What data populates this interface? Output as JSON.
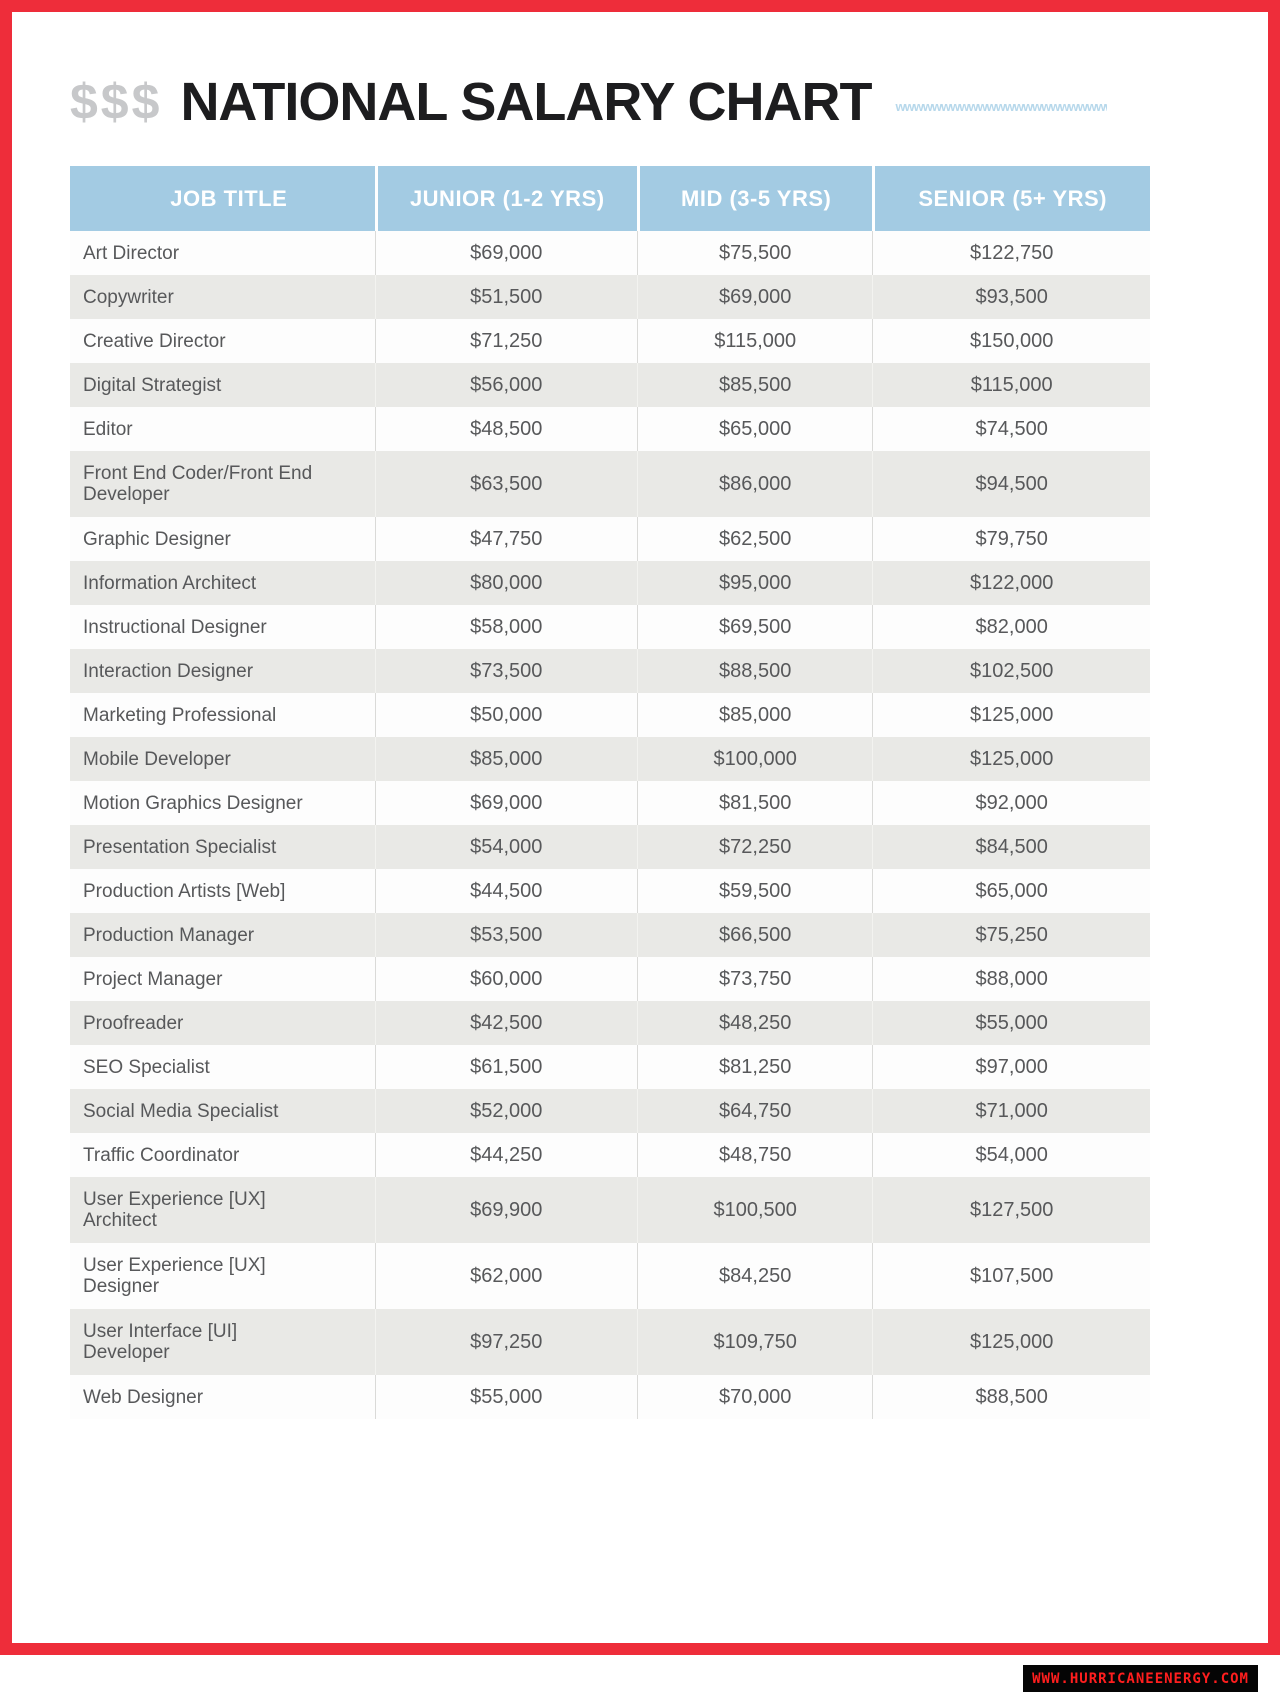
{
  "header": {
    "dollar_signs": "$$$",
    "title": "NATIONAL SALARY CHART",
    "squiggle": "wwwwwwwwwwwwwwwwwwwwwwwwwwwwww"
  },
  "watermark": {
    "text": "WWW.HURRICANEENERGY.COM"
  },
  "colors": {
    "border_red": "#ee2d3a",
    "header_blue": "#a3cbe3",
    "stripe_gray": "#e9e9e6",
    "body_text": "#57585a",
    "title_text": "#1d1d1f",
    "dollar_signs_gray": "#c7c8ca",
    "squiggle_blue": "#b7d8eb",
    "watermark_bg": "#050505",
    "watermark_text": "#ff1e1e"
  },
  "chart_data": {
    "type": "table",
    "title": "NATIONAL SALARY CHART",
    "columns": [
      "JOB TITLE",
      "JUNIOR (1-2 YRS)",
      "MID (3-5 YRS)",
      "SENIOR (5+ YRS)"
    ],
    "rows": [
      [
        "Art Director",
        "$69,000",
        "$75,500",
        "$122,750"
      ],
      [
        "Copywriter",
        "$51,500",
        "$69,000",
        "$93,500"
      ],
      [
        "Creative Director",
        "$71,250",
        "$115,000",
        "$150,000"
      ],
      [
        "Digital Strategist",
        "$56,000",
        "$85,500",
        "$115,000"
      ],
      [
        "Editor",
        "$48,500",
        "$65,000",
        "$74,500"
      ],
      [
        "Front End Coder/Front End Developer",
        "$63,500",
        "$86,000",
        "$94,500"
      ],
      [
        "Graphic Designer",
        "$47,750",
        "$62,500",
        "$79,750"
      ],
      [
        "Information Architect",
        "$80,000",
        "$95,000",
        "$122,000"
      ],
      [
        "Instructional Designer",
        "$58,000",
        "$69,500",
        "$82,000"
      ],
      [
        "Interaction Designer",
        "$73,500",
        "$88,500",
        "$102,500"
      ],
      [
        "Marketing Professional",
        "$50,000",
        "$85,000",
        "$125,000"
      ],
      [
        "Mobile Developer",
        "$85,000",
        "$100,000",
        "$125,000"
      ],
      [
        "Motion Graphics Designer",
        "$69,000",
        "$81,500",
        "$92,000"
      ],
      [
        "Presentation Specialist",
        "$54,000",
        "$72,250",
        "$84,500"
      ],
      [
        "Production Artists [Web]",
        "$44,500",
        "$59,500",
        "$65,000"
      ],
      [
        "Production Manager",
        "$53,500",
        "$66,500",
        "$75,250"
      ],
      [
        "Project Manager",
        "$60,000",
        "$73,750",
        "$88,000"
      ],
      [
        "Proofreader",
        "$42,500",
        "$48,250",
        "$55,000"
      ],
      [
        "SEO Specialist",
        "$61,500",
        "$81,250",
        "$97,000"
      ],
      [
        "Social Media Specialist",
        "$52,000",
        "$64,750",
        "$71,000"
      ],
      [
        "Traffic Coordinator",
        "$44,250",
        "$48,750",
        "$54,000"
      ],
      [
        "User Experience [UX] Architect",
        "$69,900",
        "$100,500",
        "$127,500"
      ],
      [
        "User Experience [UX] Designer",
        "$62,000",
        "$84,250",
        "$107,500"
      ],
      [
        "User Interface [UI] Developer",
        "$97,250",
        "$109,750",
        "$125,000"
      ],
      [
        "Web Designer",
        "$55,000",
        "$70,000",
        "$88,500"
      ]
    ]
  }
}
